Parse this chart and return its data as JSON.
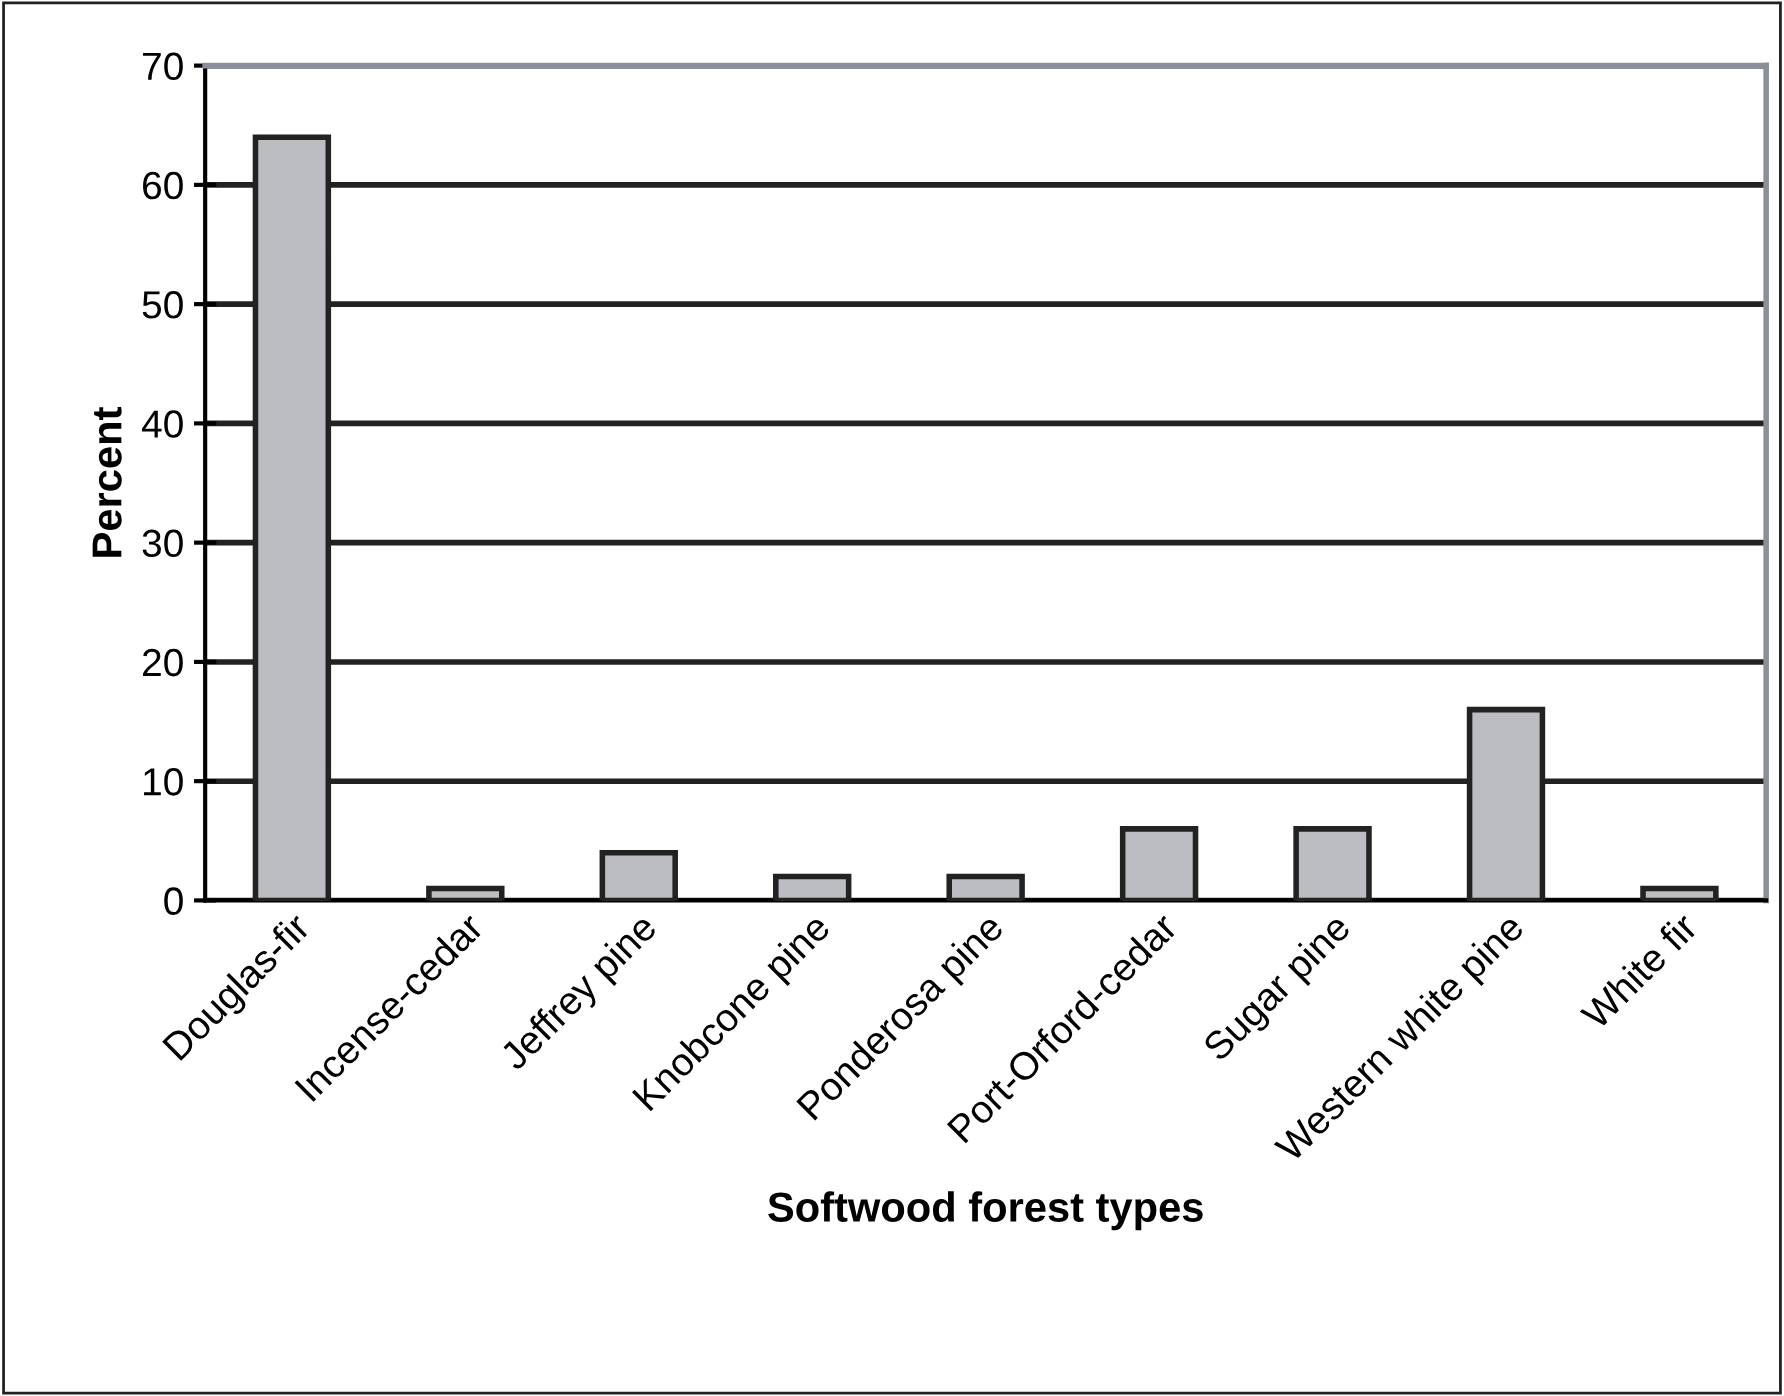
{
  "chart_data": {
    "type": "bar",
    "xlabel": "Softwood forest types",
    "ylabel": "Percent",
    "categories": [
      "Douglas-fir",
      "Incense-cedar",
      "Jeffrey pine",
      "Knobcone pine",
      "Ponderosa pine",
      "Port-Orford-cedar",
      "Sugar pine",
      "Western white pine",
      "White fir"
    ],
    "values": [
      64,
      1,
      4,
      2,
      2,
      6,
      6,
      16,
      1
    ],
    "color": "#bcbdc1",
    "ylim": [
      0,
      70
    ],
    "yticks": [
      0,
      10,
      20,
      30,
      40,
      50,
      60,
      70
    ],
    "grid": "y"
  }
}
